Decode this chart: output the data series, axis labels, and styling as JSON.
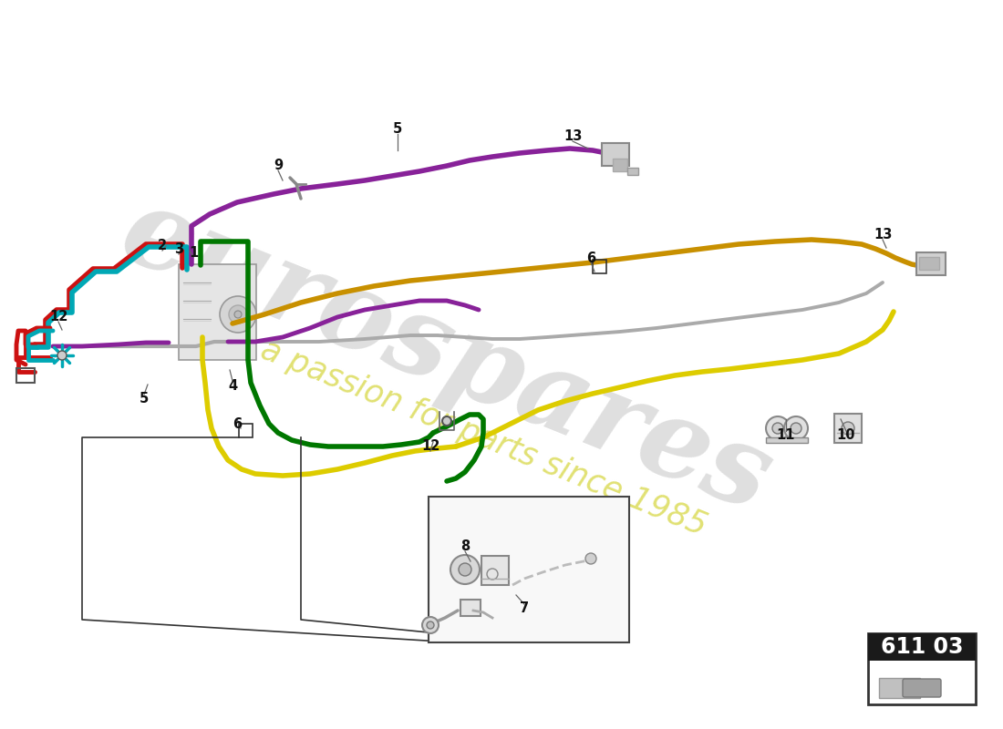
{
  "bg_color": "#ffffff",
  "part_number": "611 03",
  "watermark1": "eurospares",
  "watermark2": "a passion for parts since 1985",
  "pipe_red": "#cc1111",
  "pipe_cyan": "#00a8b5",
  "pipe_green": "#007700",
  "pipe_yellow": "#ddcc00",
  "pipe_purple": "#882299",
  "pipe_gray": "#aaaaaa",
  "pipe_orange": "#c89000",
  "label_color": "#111111"
}
